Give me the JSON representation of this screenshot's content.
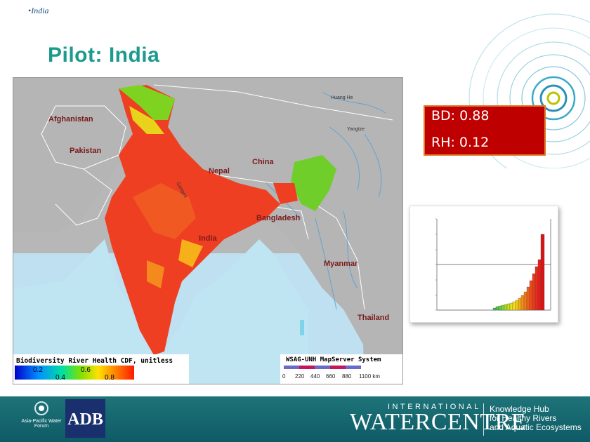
{
  "breadcrumb": "•India",
  "title": "Pilot:  India",
  "stats": {
    "bd": "BD: 0.88",
    "rh": "RH: 0.12"
  },
  "map": {
    "labels": {
      "afghanistan": "Afghanistan",
      "pakistan": "Pakistan",
      "nepal": "Nepal",
      "china": "China",
      "india": "India",
      "bangladesh": "Bangladesh",
      "myanmar": "Myanmar",
      "thailand": "Thailand",
      "huang_he": "Huang He",
      "yangtze": "Yangtze",
      "ganges": "Ganges"
    },
    "legend_title": "Biodiversity River Health CDF, unitless",
    "legend_ticks": [
      "0.2",
      "0.4",
      "0.6",
      "0.8"
    ],
    "server_label": "WSAG-UNH MapServer System",
    "scale_ticks": [
      "0",
      "220",
      "440",
      "660",
      "880",
      "1100 km"
    ]
  },
  "footer": {
    "apwf": "Asia-Pacific Water Forum",
    "adb": "ADB",
    "iwc_top": "INTERNATIONAL",
    "iwc_main": "WATERCENTRE",
    "kh_line1": "Knowledge Hub",
    "kh_line2": "for Healthy Rivers",
    "kh_line3": "and Aquatic Ecosystems"
  },
  "colors": {
    "title": "#1c9a8c",
    "stats_bg": "#bf0000",
    "stats_border": "#e07b2a",
    "footer": "#1e7478"
  }
}
